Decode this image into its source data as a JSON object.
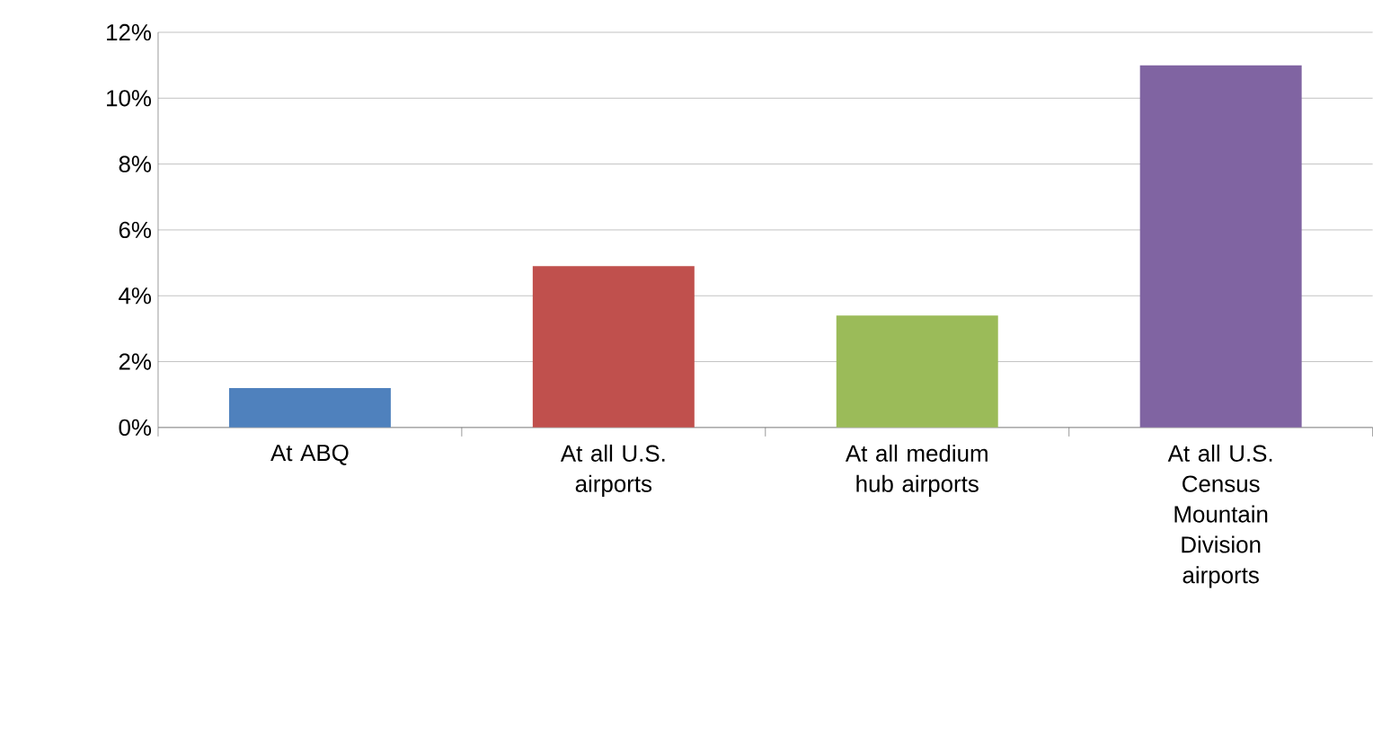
{
  "chart_data": {
    "type": "bar",
    "categories": [
      "At ABQ",
      "At all U.S. airports",
      "At all medium hub airports",
      "At all U.S. Census Mountain Division airports"
    ],
    "values": [
      1.2,
      4.9,
      3.4,
      11.0
    ],
    "colors": [
      "#4f81bd",
      "#c0504d",
      "#9bbb59",
      "#8064a2"
    ],
    "ylim": [
      0,
      12
    ],
    "yticks": [
      {
        "value": 0,
        "label": "0%"
      },
      {
        "value": 2,
        "label": "2%"
      },
      {
        "value": 4,
        "label": "4%"
      },
      {
        "value": 6,
        "label": "6%"
      },
      {
        "value": 8,
        "label": "8%"
      },
      {
        "value": 10,
        "label": "10%"
      },
      {
        "value": 12,
        "label": "12%"
      }
    ],
    "grid": "y"
  }
}
